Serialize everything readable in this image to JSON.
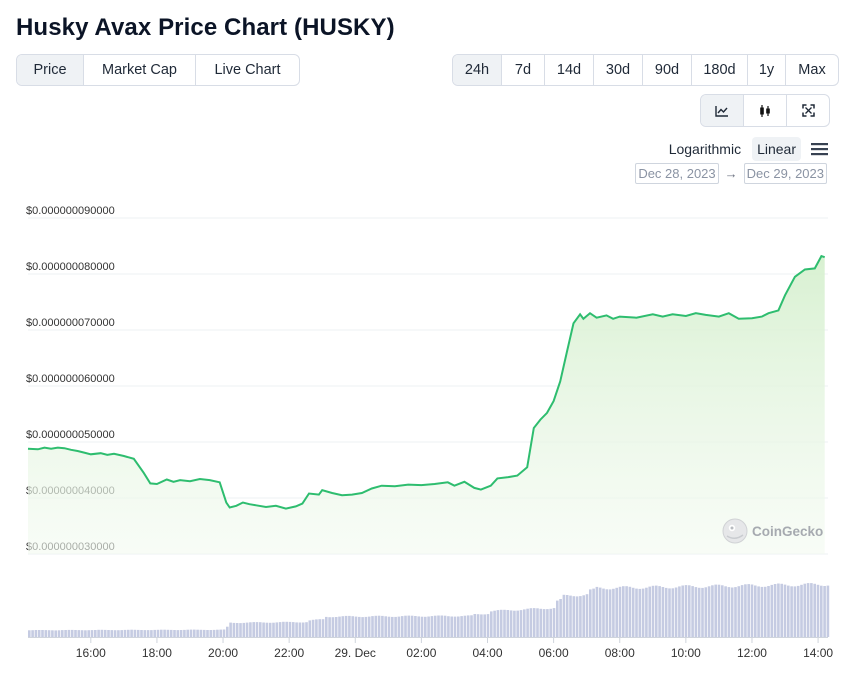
{
  "title": "Husky Avax Price Chart (HUSKY)",
  "tabs": [
    "Price",
    "Market Cap",
    "Live Chart"
  ],
  "active_tab": "Price",
  "ranges": [
    "24h",
    "7d",
    "14d",
    "30d",
    "90d",
    "180d",
    "1y",
    "Max"
  ],
  "active_range": "24h",
  "chart_type_buttons": [
    "line-chart-icon",
    "candlestick-icon",
    "fullscreen-icon"
  ],
  "active_chart_type": "line-chart-icon",
  "scale": {
    "log_label": "Logarithmic",
    "linear_label": "Linear",
    "active": "Linear"
  },
  "menu_icon": "hamburger-menu-icon",
  "date_range": {
    "from": "Dec 28, 2023",
    "arrow": "→",
    "to": "Dec 29, 2023"
  },
  "watermark": "CoinGecko",
  "colors": {
    "line": "#2ebd6f",
    "fill": "#e7f6e3",
    "volume": "#c5cbe2",
    "grid": "#eef0f3"
  },
  "chart_data": {
    "type": "area",
    "title": "",
    "xlabel": "",
    "ylabel": "",
    "ylim": [
      3e-08,
      9e-08
    ],
    "yticks": [
      "$0.000000090000",
      "$0.000000080000",
      "$0.000000070000",
      "$0.000000060000",
      "$0.000000050000",
      "$0.000000040000",
      "$0.000000030000"
    ],
    "ytick_values": [
      9e-08,
      8e-08,
      7e-08,
      6e-08,
      5e-08,
      4e-08,
      3e-08
    ],
    "xticks": [
      "16:00",
      "18:00",
      "20:00",
      "22:00",
      "29. Dec",
      "02:00",
      "04:00",
      "06:00",
      "08:00",
      "10:00",
      "12:00",
      "14:00"
    ],
    "xtick_hours": [
      16,
      18,
      20,
      22,
      24,
      26,
      28,
      30,
      32,
      34,
      36,
      38
    ],
    "xlim_hours": [
      14.1,
      38.3
    ],
    "grid": true,
    "series": [
      {
        "hours": [
          14.1,
          14.4,
          14.6,
          14.8,
          15.0,
          15.2,
          15.4,
          15.6,
          15.8,
          16.0,
          16.3,
          16.5,
          16.7,
          17.0,
          17.3,
          17.6,
          17.8,
          18.0,
          18.3,
          18.5,
          18.7,
          19.0,
          19.3,
          19.6,
          19.9,
          20.0,
          20.1,
          20.2,
          20.4,
          20.6,
          20.8,
          21.0,
          21.3,
          21.6,
          21.9,
          22.2,
          22.4,
          22.6,
          22.9,
          23.0,
          23.3,
          23.6,
          23.9,
          24.2,
          24.5,
          24.8,
          25.2,
          25.6,
          26.0,
          26.4,
          26.8,
          27.0,
          27.3,
          27.6,
          27.8,
          28.1,
          28.3,
          28.6,
          28.9,
          29.2,
          29.4,
          29.6,
          29.8,
          30.0,
          30.2,
          30.4,
          30.6,
          30.8,
          30.9,
          31.0,
          31.1,
          31.3,
          31.6,
          31.8,
          32.0,
          32.5,
          33.0,
          33.3,
          33.6,
          34.0,
          34.3,
          34.6,
          35.0,
          35.3,
          35.6,
          36.0,
          36.3,
          36.5,
          36.8,
          37.0,
          37.3,
          37.6,
          37.9,
          38.1,
          38.2
        ],
        "values": [
          4.88e-08,
          4.87e-08,
          4.9e-08,
          4.88e-08,
          4.9e-08,
          4.89e-08,
          4.86e-08,
          4.84e-08,
          4.81e-08,
          4.78e-08,
          4.8e-08,
          4.77e-08,
          4.79e-08,
          4.75e-08,
          4.7e-08,
          4.45e-08,
          4.26e-08,
          4.25e-08,
          4.33e-08,
          4.29e-08,
          4.32e-08,
          4.3e-08,
          4.34e-08,
          4.32e-08,
          4.28e-08,
          4.1e-08,
          3.92e-08,
          3.83e-08,
          3.86e-08,
          3.92e-08,
          3.89e-08,
          3.87e-08,
          3.84e-08,
          3.86e-08,
          3.81e-08,
          3.85e-08,
          3.9e-08,
          4.08e-08,
          4.06e-08,
          4.14e-08,
          4.09e-08,
          4.05e-08,
          4.06e-08,
          4.09e-08,
          4.17e-08,
          4.22e-08,
          4.21e-08,
          4.24e-08,
          4.23e-08,
          4.25e-08,
          4.28e-08,
          4.22e-08,
          4.29e-08,
          4.18e-08,
          4.15e-08,
          4.22e-08,
          4.35e-08,
          4.37e-08,
          4.4e-08,
          4.55e-08,
          5.25e-08,
          5.4e-08,
          5.52e-08,
          5.73e-08,
          6.08e-08,
          6.6e-08,
          7.12e-08,
          7.28e-08,
          7.2e-08,
          7.25e-08,
          7.3e-08,
          7.22e-08,
          7.26e-08,
          7.2e-08,
          7.24e-08,
          7.22e-08,
          7.28e-08,
          7.24e-08,
          7.28e-08,
          7.25e-08,
          7.3e-08,
          7.27e-08,
          7.24e-08,
          7.3e-08,
          7.2e-08,
          7.21e-08,
          7.24e-08,
          7.3e-08,
          7.35e-08,
          7.62e-08,
          7.95e-08,
          8.08e-08,
          8.1e-08,
          8.32e-08,
          8.3e-08
        ]
      }
    ],
    "volume": {
      "hours": [
        14.1,
        20.0,
        20.1,
        22.5,
        23.0,
        27.5,
        28.0,
        30.0,
        30.2,
        31.0,
        31.2,
        38.3
      ],
      "relative_height": [
        0.1,
        0.12,
        0.21,
        0.24,
        0.3,
        0.33,
        0.38,
        0.52,
        0.6,
        0.68,
        0.72,
        0.88
      ]
    }
  }
}
